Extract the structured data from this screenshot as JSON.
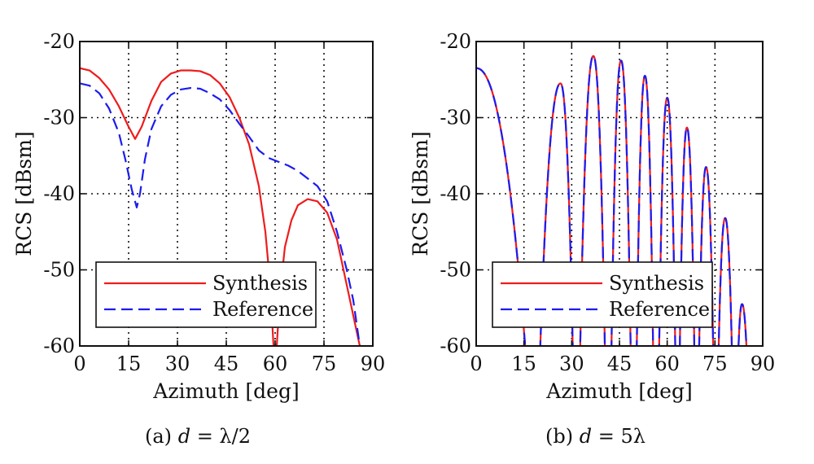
{
  "colors": {
    "synthesis": "#ee1c1c",
    "reference": "#1c1cee",
    "axis": "#111111",
    "grid": "#111111"
  },
  "chart_data": [
    {
      "type": "line",
      "caption": {
        "prefix": "(a)",
        "var": "d",
        "expr": " = λ/2"
      },
      "xlabel": "Azimuth [deg]",
      "ylabel": "RCS [dBsm]",
      "xlim": [
        0,
        90
      ],
      "ylim": [
        -60,
        -20
      ],
      "xticks": [
        0,
        15,
        30,
        45,
        60,
        75,
        90
      ],
      "yticks": [
        -20,
        -30,
        -40,
        -50,
        -60
      ],
      "grid": true,
      "legend": {
        "position": "bottom-left",
        "entries": [
          "Synthesis",
          "Reference"
        ]
      },
      "series": [
        {
          "name": "Synthesis",
          "style": "solid",
          "x": [
            0,
            3,
            6,
            9,
            12,
            15,
            17,
            19,
            22,
            25,
            28,
            31,
            34,
            37,
            40,
            43,
            46,
            49,
            52,
            55,
            57,
            58.5,
            59.5,
            60,
            60.5,
            61.5,
            63,
            65,
            67,
            70,
            73,
            76,
            79,
            82,
            84,
            86
          ],
          "y": [
            -23.5,
            -23.8,
            -24.8,
            -26.3,
            -28.5,
            -31.2,
            -32.8,
            -31.2,
            -27.8,
            -25.3,
            -24.2,
            -23.8,
            -23.8,
            -23.9,
            -24.4,
            -25.5,
            -27.3,
            -30,
            -33.5,
            -39,
            -45,
            -52,
            -60,
            -61,
            -60,
            -53,
            -47,
            -43.5,
            -41.5,
            -40.7,
            -41,
            -42.5,
            -46,
            -52,
            -56,
            -60
          ]
        },
        {
          "name": "Reference",
          "style": "dashed",
          "x": [
            0,
            3,
            6,
            9,
            12,
            14,
            16,
            17.5,
            18.5,
            20,
            22,
            25,
            28,
            31,
            34,
            37,
            40,
            43,
            46,
            49,
            52,
            55,
            58,
            61,
            64,
            67,
            70,
            73,
            76,
            79,
            82,
            84,
            86
          ],
          "y": [
            -25.5,
            -25.8,
            -26.8,
            -28.8,
            -32,
            -35.5,
            -39.5,
            -41.8,
            -40,
            -35.5,
            -31.5,
            -28.5,
            -27,
            -26.3,
            -26.1,
            -26.2,
            -26.8,
            -27.6,
            -29,
            -30.8,
            -32.5,
            -34.3,
            -35.3,
            -35.8,
            -36.3,
            -37,
            -38,
            -39,
            -41,
            -45,
            -50,
            -54,
            -60
          ]
        }
      ]
    },
    {
      "type": "line",
      "caption": {
        "prefix": "(b)",
        "var": "d",
        "expr": " = 5λ"
      },
      "xlabel": "Azimuth [deg]",
      "ylabel": "RCS [dBsm]",
      "xlim": [
        0,
        90
      ],
      "ylim": [
        -60,
        -20
      ],
      "xticks": [
        0,
        15,
        30,
        45,
        60,
        75,
        90
      ],
      "yticks": [
        -20,
        -30,
        -40,
        -50,
        -60
      ],
      "grid": true,
      "legend": {
        "position": "bottom-left",
        "entries": [
          "Synthesis",
          "Reference"
        ]
      },
      "series": [
        {
          "name": "Synthesis",
          "style": "solid",
          "lobes": [
            {
              "from": 0,
              "to": 18,
              "peak_x": 0,
              "peak_y": -23.5
            },
            {
              "from": 19,
              "to": 31,
              "peak_x": 26.5,
              "peak_y": -25.5
            },
            {
              "from": 32,
              "to": 41,
              "peak_x": 36.8,
              "peak_y": -21.9
            },
            {
              "from": 42,
              "to": 49,
              "peak_x": 45.5,
              "peak_y": -22.5
            },
            {
              "from": 50,
              "to": 56,
              "peak_x": 53,
              "peak_y": -24.5
            },
            {
              "from": 57,
              "to": 63,
              "peak_x": 60,
              "peak_y": -27.4
            },
            {
              "from": 63.5,
              "to": 69,
              "peak_x": 66.2,
              "peak_y": -31.3
            },
            {
              "from": 69.5,
              "to": 75,
              "peak_x": 72.2,
              "peak_y": -36.5
            },
            {
              "from": 75.5,
              "to": 81,
              "peak_x": 78.2,
              "peak_y": -43.2
            },
            {
              "from": 81.5,
              "to": 86,
              "peak_x": 83.5,
              "peak_y": -54.5
            }
          ]
        },
        {
          "name": "Reference",
          "style": "dashed",
          "same_as": "Synthesis"
        }
      ]
    }
  ]
}
